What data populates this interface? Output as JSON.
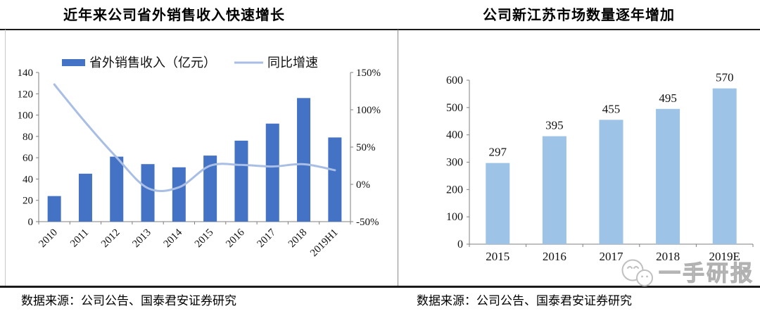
{
  "panels": {
    "left": {
      "title": "近年来公司省外销售收入快速增长",
      "source": "数据来源：公司公告、国泰君安证券研究"
    },
    "right": {
      "title": "公司新江苏市场数量逐年增加",
      "source": "数据来源：公司公告、国泰君安证券研究"
    }
  },
  "watermark": {
    "label": "一手研报",
    "icon": "wechat-bubbles-icon"
  },
  "colors": {
    "bar_dark_blue": "#4472C4",
    "line_light_blue": "#A9BEE4",
    "bar_light_blue": "#9DC3E6",
    "axis_gray": "#7f7f7f",
    "watermark_gray": "#bfbfbf"
  },
  "chart_data": [
    {
      "type": "bar+line",
      "title": "近年来公司省外销售收入快速增长",
      "categories": [
        "2010",
        "2011",
        "2012",
        "2013",
        "2014",
        "2015",
        "2016",
        "2017",
        "2018",
        "2019H1"
      ],
      "series": [
        {
          "name": "省外销售收入（亿元）",
          "type": "bar",
          "axis": "left",
          "color": "#4472C4",
          "values": [
            24,
            45,
            61,
            54,
            51,
            62,
            76,
            92,
            116,
            79
          ]
        },
        {
          "name": "同比增速",
          "type": "line",
          "axis": "right",
          "color": "#A9BEE4",
          "values_pct": [
            134,
            83,
            36,
            -5,
            -4,
            25,
            26,
            24,
            27,
            19
          ]
        }
      ],
      "left_axis": {
        "min": 0,
        "max": 140,
        "step": 20,
        "ticks": [
          "140",
          "120",
          "100",
          "80",
          "60",
          "40",
          "20",
          "0"
        ]
      },
      "right_axis": {
        "min": -50,
        "max": 150,
        "step": 50,
        "ticks": [
          "150%",
          "100%",
          "50%",
          "0%",
          "-50%"
        ]
      },
      "legend_position": "top",
      "grid": false
    },
    {
      "type": "bar",
      "title": "公司新江苏市场数量逐年增加",
      "categories": [
        "2015",
        "2016",
        "2017",
        "2018",
        "2019E"
      ],
      "values": [
        297,
        395,
        455,
        495,
        570
      ],
      "data_labels": [
        "297",
        "395",
        "455",
        "495",
        "570"
      ],
      "ylabel": "",
      "xlabel": "",
      "ylim": [
        0,
        600
      ],
      "y_ticks": [
        "600",
        "500",
        "400",
        "300",
        "200",
        "100",
        "0"
      ],
      "grid": false
    }
  ]
}
